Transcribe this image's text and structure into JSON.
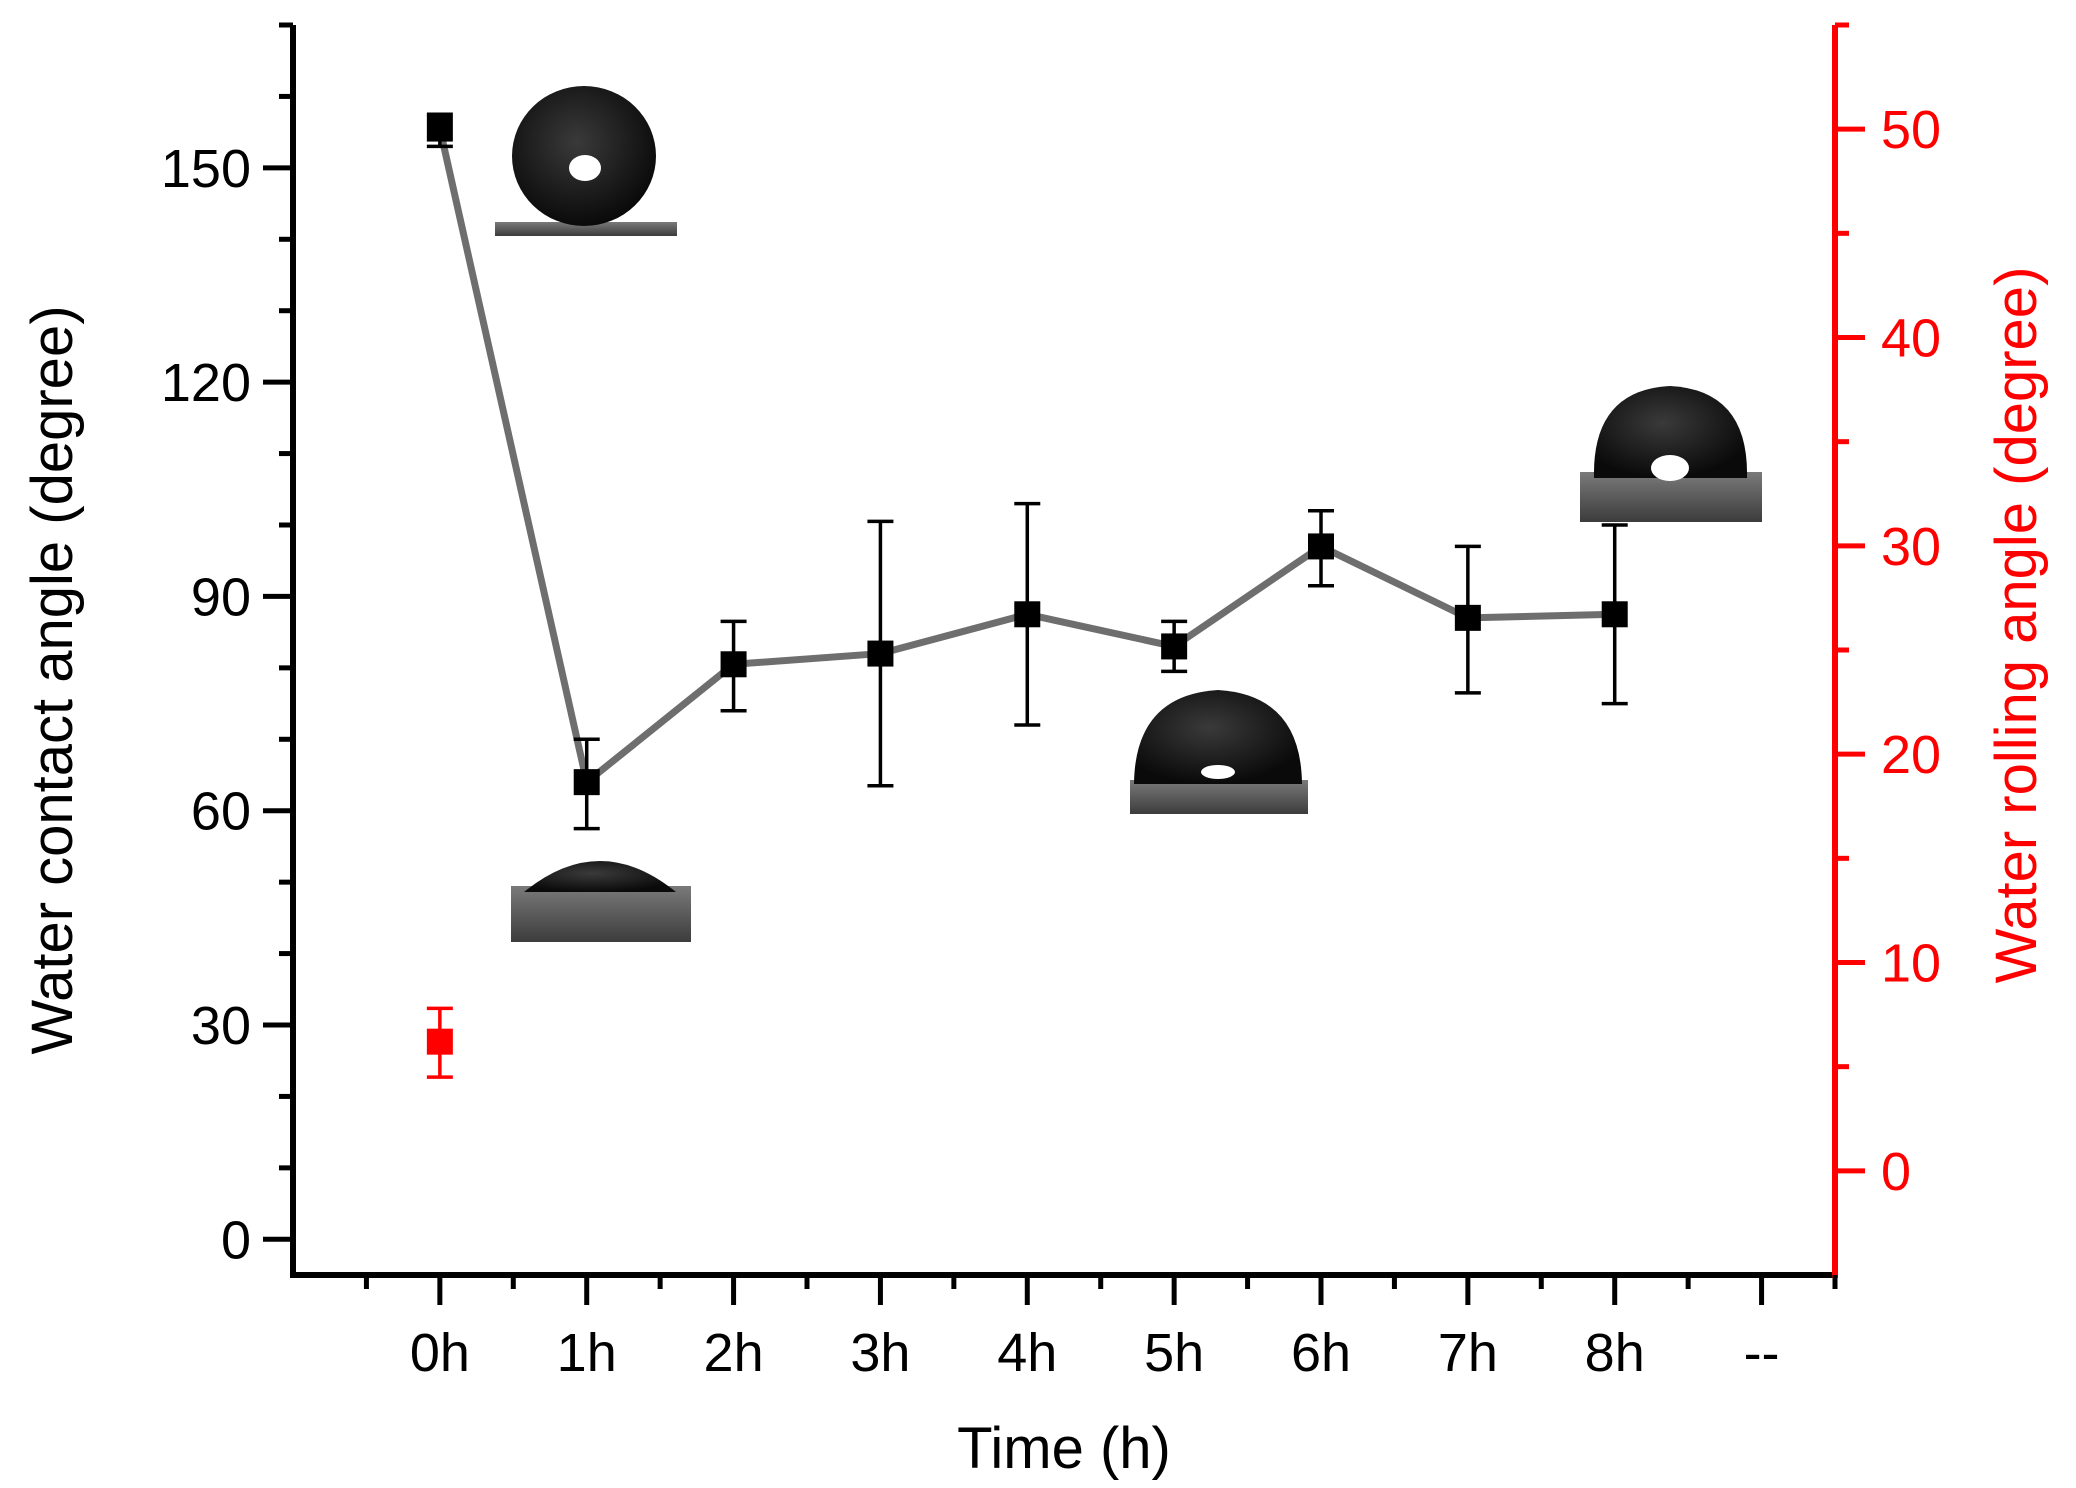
{
  "chart_data": {
    "type": "scatter",
    "xlabel": "Time (h)",
    "categories": [
      "0h",
      "1h",
      "2h",
      "3h",
      "4h",
      "5h",
      "6h",
      "7h",
      "8h",
      "--"
    ],
    "y_left": {
      "label": "Water contact angle (degree)",
      "range": [
        -5,
        170
      ],
      "ticks": [
        "0",
        "30",
        "60",
        "90",
        "120",
        "150"
      ],
      "tick_values": [
        0,
        30,
        60,
        90,
        120,
        150
      ],
      "minor_step": 10
    },
    "y_right": {
      "label": "Water rolling angle (degree)",
      "range": [
        -5,
        55
      ],
      "ticks": [
        "0",
        "10",
        "20",
        "30",
        "40",
        "50"
      ],
      "tick_values": [
        0,
        10,
        20,
        30,
        40,
        50
      ],
      "minor_step": 5,
      "color": "#ff0000"
    },
    "series": [
      {
        "axis": "left",
        "color": "#000000",
        "line_color": "#6e6e6e",
        "x": [
          "0h",
          "1h",
          "2h",
          "3h",
          "4h",
          "5h",
          "6h",
          "7h",
          "8h"
        ],
        "values": [
          155.5,
          64,
          80.5,
          82,
          87.5,
          83,
          97,
          87,
          87.5
        ],
        "err_lower": [
          2.5,
          6.5,
          6.5,
          18.5,
          15.5,
          3.5,
          5.5,
          10.5,
          12.5
        ],
        "err_upper": [
          2.0,
          6.0,
          6.0,
          18.5,
          15.5,
          3.5,
          5.0,
          10.0,
          12.5
        ]
      },
      {
        "axis": "right",
        "color": "#ff0000",
        "x": [
          "0h"
        ],
        "values": [
          6.2
        ],
        "err_lower": [
          1.7
        ],
        "err_upper": [
          1.6
        ]
      }
    ],
    "insets": [
      {
        "name": "droplet-0h",
        "x": "0h",
        "shape": "sphere"
      },
      {
        "name": "droplet-1h",
        "x": "1h",
        "shape": "cap-low"
      },
      {
        "name": "droplet-5h",
        "x": "5h",
        "shape": "cap-mid"
      },
      {
        "name": "droplet-8h",
        "x": "8h",
        "shape": "cap-high"
      }
    ],
    "grid": false,
    "legend": "none"
  }
}
